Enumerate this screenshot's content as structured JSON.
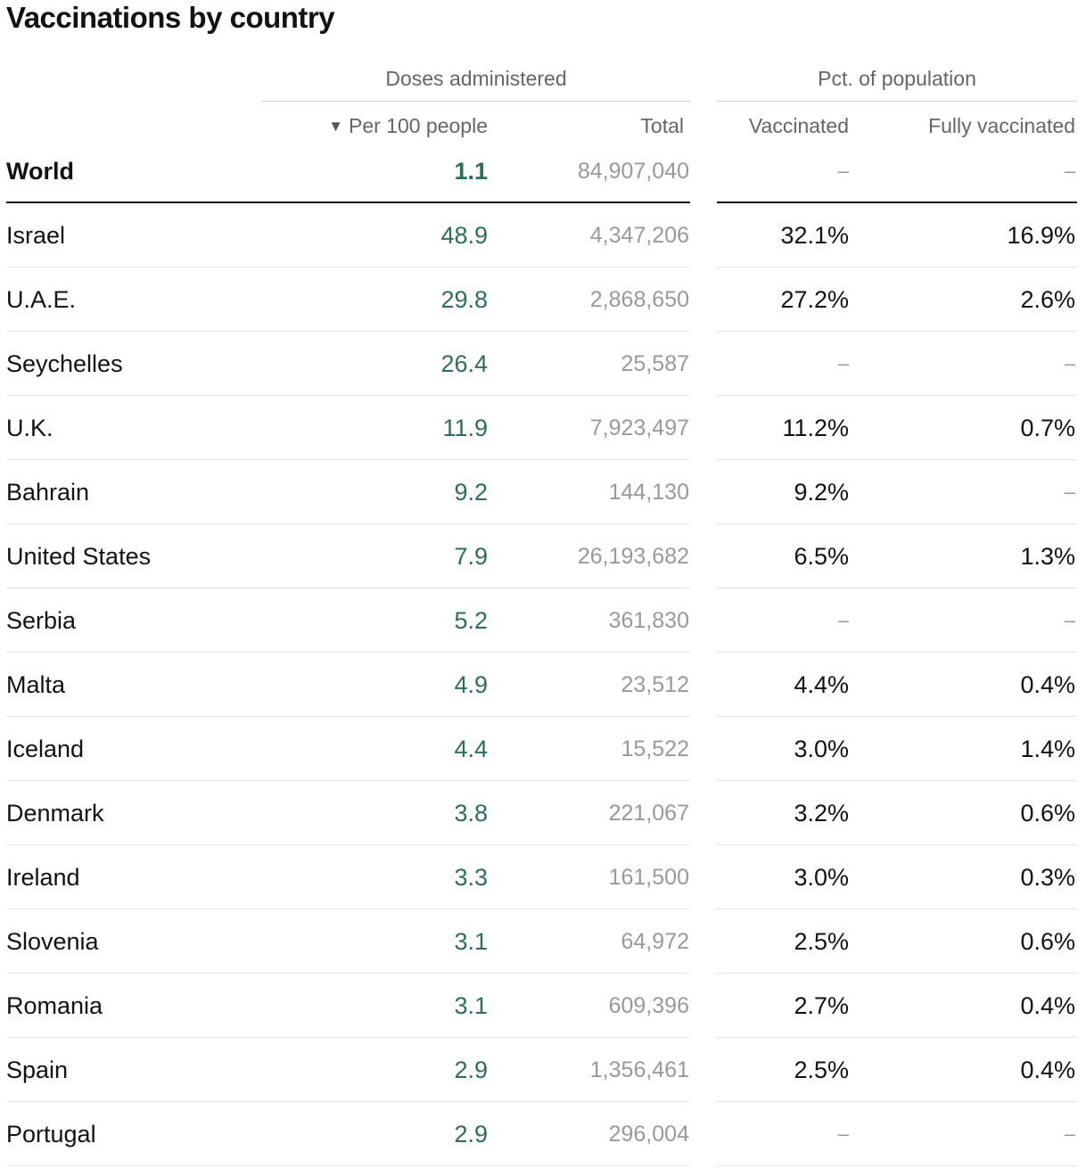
{
  "title": "Vaccinations by country",
  "groups": {
    "doses": "Doses administered",
    "pct": "Pct. of population"
  },
  "columns": {
    "sort_icon": "▼",
    "per100": "Per 100 people",
    "total": "Total",
    "vaccinated": "Vaccinated",
    "fully": "Fully vaccinated"
  },
  "world": {
    "name": "World",
    "per100": "1.1",
    "total": "84,907,040",
    "vaccinated": "–",
    "fully": "–"
  },
  "rows": [
    {
      "name": "Israel",
      "per100": "48.9",
      "total": "4,347,206",
      "vaccinated": "32.1%",
      "fully": "16.9%"
    },
    {
      "name": "U.A.E.",
      "per100": "29.8",
      "total": "2,868,650",
      "vaccinated": "27.2%",
      "fully": "2.6%"
    },
    {
      "name": "Seychelles",
      "per100": "26.4",
      "total": "25,587",
      "vaccinated": "–",
      "fully": "–"
    },
    {
      "name": "U.K.",
      "per100": "11.9",
      "total": "7,923,497",
      "vaccinated": "11.2%",
      "fully": "0.7%"
    },
    {
      "name": "Bahrain",
      "per100": "9.2",
      "total": "144,130",
      "vaccinated": "9.2%",
      "fully": "–"
    },
    {
      "name": "United States",
      "per100": "7.9",
      "total": "26,193,682",
      "vaccinated": "6.5%",
      "fully": "1.3%"
    },
    {
      "name": "Serbia",
      "per100": "5.2",
      "total": "361,830",
      "vaccinated": "–",
      "fully": "–"
    },
    {
      "name": "Malta",
      "per100": "4.9",
      "total": "23,512",
      "vaccinated": "4.4%",
      "fully": "0.4%"
    },
    {
      "name": "Iceland",
      "per100": "4.4",
      "total": "15,522",
      "vaccinated": "3.0%",
      "fully": "1.4%"
    },
    {
      "name": "Denmark",
      "per100": "3.8",
      "total": "221,067",
      "vaccinated": "3.2%",
      "fully": "0.6%"
    },
    {
      "name": "Ireland",
      "per100": "3.3",
      "total": "161,500",
      "vaccinated": "3.0%",
      "fully": "0.3%"
    },
    {
      "name": "Slovenia",
      "per100": "3.1",
      "total": "64,972",
      "vaccinated": "2.5%",
      "fully": "0.6%"
    },
    {
      "name": "Romania",
      "per100": "3.1",
      "total": "609,396",
      "vaccinated": "2.7%",
      "fully": "0.4%"
    },
    {
      "name": "Spain",
      "per100": "2.9",
      "total": "1,356,461",
      "vaccinated": "2.5%",
      "fully": "0.4%"
    },
    {
      "name": "Portugal",
      "per100": "2.9",
      "total": "296,004",
      "vaccinated": "–",
      "fully": "–"
    }
  ]
}
